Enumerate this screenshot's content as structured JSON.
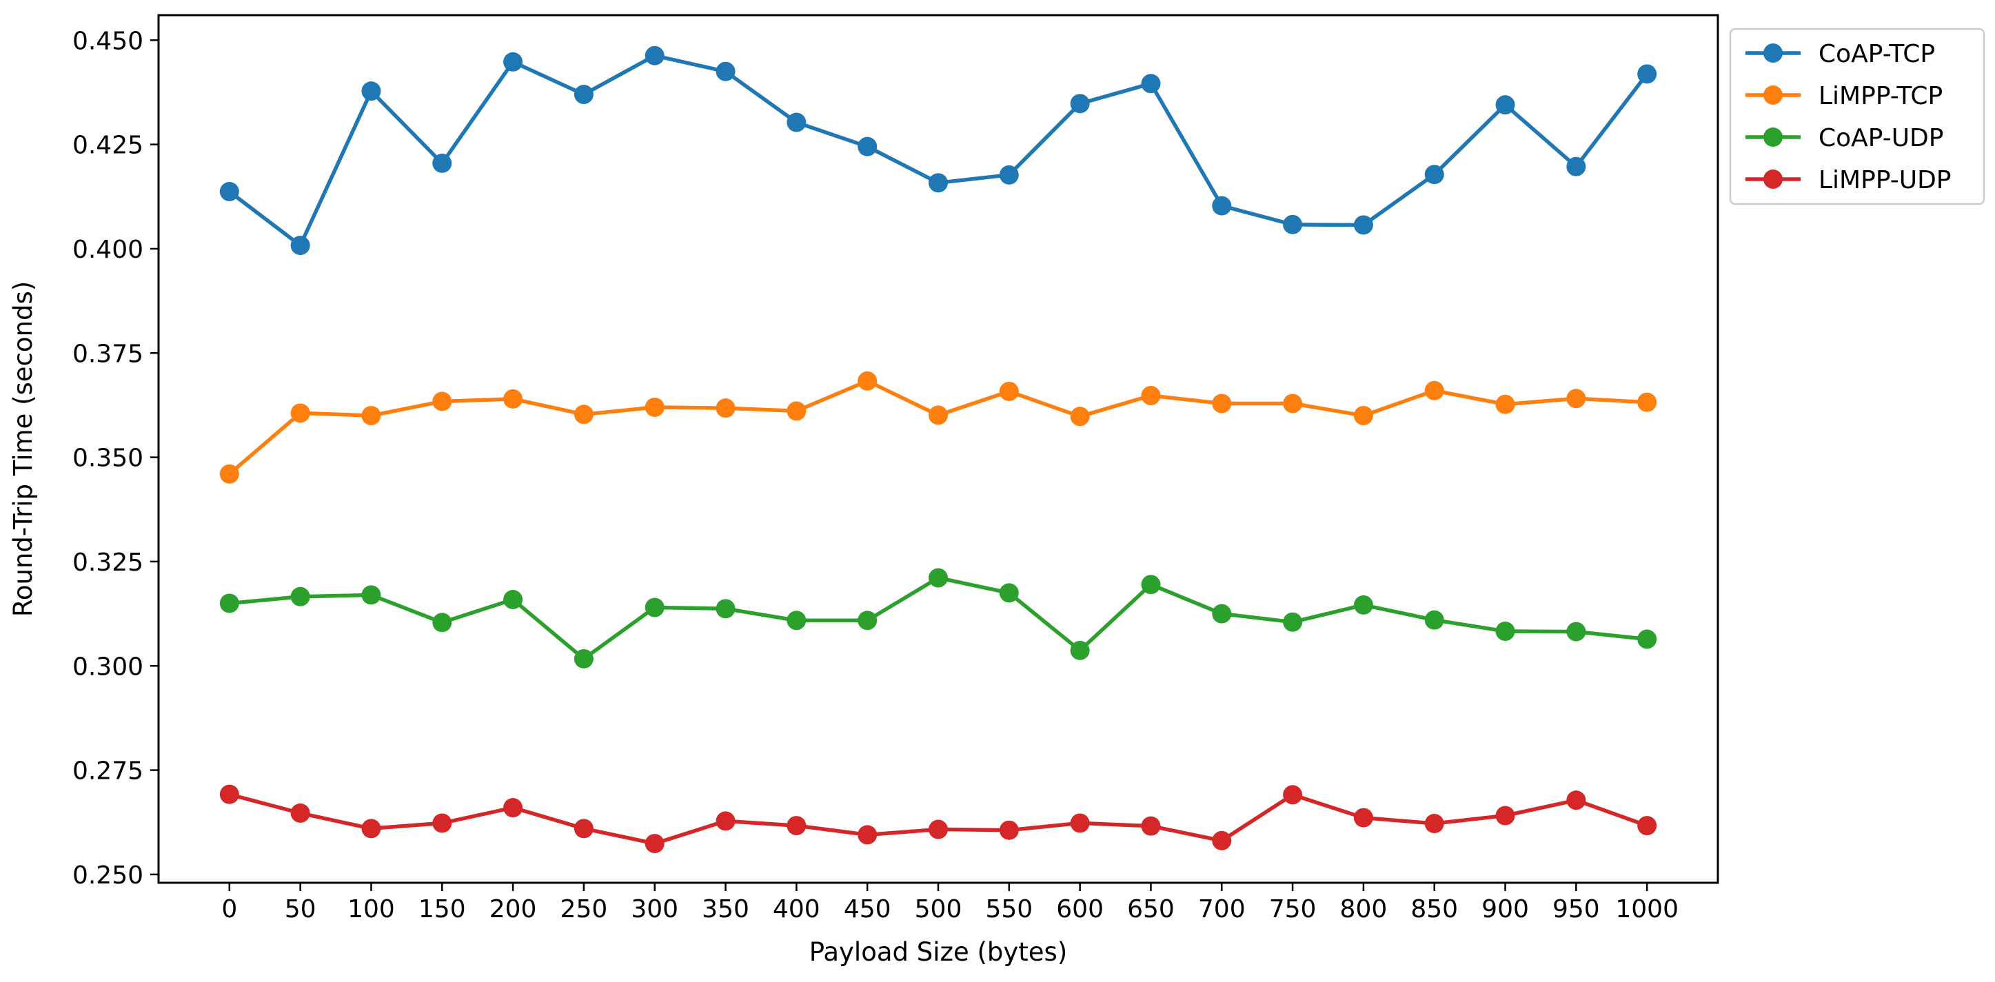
{
  "chart_data": {
    "type": "line",
    "title": "",
    "xlabel": "Payload Size (bytes)",
    "ylabel": "Round-Trip Time (seconds)",
    "x": [
      0,
      50,
      100,
      150,
      200,
      250,
      300,
      350,
      400,
      450,
      500,
      550,
      600,
      650,
      700,
      750,
      800,
      850,
      900,
      950,
      1000
    ],
    "xticks": [
      "0",
      "50",
      "100",
      "150",
      "200",
      "250",
      "300",
      "350",
      "400",
      "450",
      "500",
      "550",
      "600",
      "650",
      "700",
      "750",
      "800",
      "850",
      "900",
      "950",
      "1000"
    ],
    "yticks": [
      "0.250",
      "0.275",
      "0.300",
      "0.325",
      "0.350",
      "0.375",
      "0.400",
      "0.425",
      "0.450"
    ],
    "ytick_values": [
      0.25,
      0.275,
      0.3,
      0.325,
      0.35,
      0.375,
      0.4,
      0.425,
      0.45
    ],
    "xlim": [
      -50,
      1050
    ],
    "ylim": [
      0.248,
      0.456
    ],
    "grid": false,
    "legend_position": "outside-top-right",
    "series": [
      {
        "name": "CoAP-TCP",
        "color": "#1f77b4",
        "values": [
          0.4137,
          0.4008,
          0.4378,
          0.4205,
          0.4448,
          0.437,
          0.4463,
          0.4425,
          0.4303,
          0.4245,
          0.4158,
          0.4177,
          0.4348,
          0.4396,
          0.4103,
          0.4058,
          0.4057,
          0.4178,
          0.4345,
          0.4197,
          0.4419
        ]
      },
      {
        "name": "LiMPP-TCP",
        "color": "#ff7f0e",
        "values": [
          0.346,
          0.3606,
          0.36,
          0.3634,
          0.364,
          0.3603,
          0.362,
          0.3618,
          0.3611,
          0.3683,
          0.3601,
          0.3658,
          0.3598,
          0.3648,
          0.3629,
          0.3629,
          0.36,
          0.366,
          0.3627,
          0.3641,
          0.3632
        ]
      },
      {
        "name": "CoAP-UDP",
        "color": "#2ca02c",
        "values": [
          0.315,
          0.3166,
          0.317,
          0.3104,
          0.3159,
          0.3017,
          0.314,
          0.3137,
          0.3109,
          0.3109,
          0.3211,
          0.3175,
          0.3037,
          0.3195,
          0.3125,
          0.3105,
          0.3146,
          0.311,
          0.3083,
          0.3082,
          0.3064
        ]
      },
      {
        "name": "LiMPP-UDP",
        "color": "#d62728",
        "values": [
          0.2692,
          0.2647,
          0.261,
          0.2623,
          0.266,
          0.261,
          0.2574,
          0.2628,
          0.2617,
          0.2595,
          0.2608,
          0.2606,
          0.2623,
          0.2616,
          0.2581,
          0.2691,
          0.2636,
          0.2622,
          0.2641,
          0.2678,
          0.2617
        ]
      }
    ]
  }
}
